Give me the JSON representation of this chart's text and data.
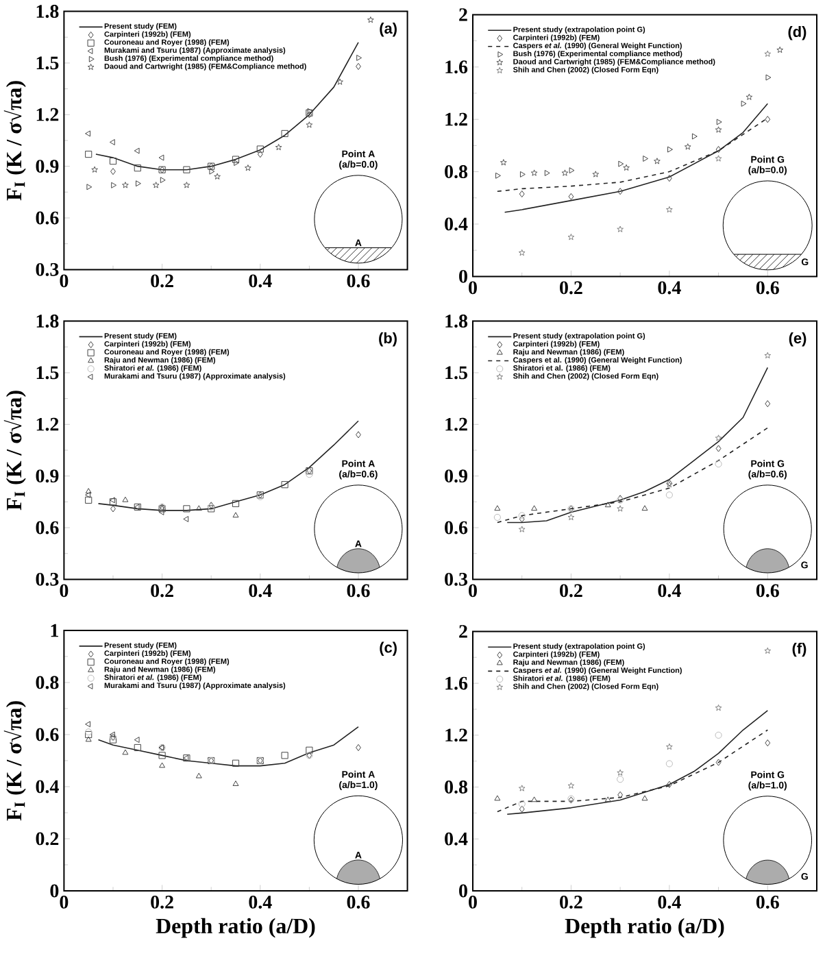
{
  "chart_data": [
    {
      "type": "scatter",
      "ylabel": "F$_{I}$ (K / σ√πa)",
      "xlim": [
        0,
        0.7
      ],
      "ylim": [
        0.3,
        1.8
      ],
      "xticks": [
        0,
        0.2,
        0.4,
        0.6
      ],
      "yticks": [
        0.3,
        0.6,
        0.9,
        1.2,
        1.5,
        1.8
      ],
      "legend": "top left",
      "annotations": [
        "(a)",
        "Point A",
        "(a/b=0.0)",
        "A"
      ],
      "series": [
        {
          "name": "Present study (FEM)",
          "type": "line",
          "marker": "none",
          "line_style": "solid",
          "color": "#222222",
          "x": [
            0.065,
            0.1,
            0.15,
            0.2,
            0.25,
            0.3,
            0.35,
            0.4,
            0.45,
            0.5,
            0.55,
            0.6
          ],
          "values": [
            0.97,
            0.95,
            0.9,
            0.88,
            0.88,
            0.9,
            0.94,
            0.995,
            1.08,
            1.2,
            1.36,
            1.62
          ]
        },
        {
          "name": "Carpinteri (1992b) (FEM)",
          "marker": "diamond",
          "color": "#444444",
          "x": [
            0.1,
            0.2,
            0.3,
            0.4,
            0.5,
            0.6
          ],
          "values": [
            0.87,
            0.88,
            0.9,
            0.97,
            1.2,
            1.48
          ]
        },
        {
          "name": "Couroneau and Royer (1998) (FEM)",
          "marker": "square",
          "color": "#444444",
          "x": [
            0.05,
            0.1,
            0.15,
            0.2,
            0.25,
            0.3,
            0.35,
            0.4,
            0.45,
            0.5
          ],
          "values": [
            0.97,
            0.93,
            0.89,
            0.88,
            0.88,
            0.9,
            0.94,
            1.0,
            1.09,
            1.21
          ]
        },
        {
          "name": "Murakami and Tsuru (1987) (Approximate analysis)",
          "marker": "triangle-left",
          "color": "#444444",
          "x": [
            0.05,
            0.1,
            0.15,
            0.2
          ],
          "values": [
            1.09,
            1.04,
            0.99,
            0.95
          ]
        },
        {
          "name": "Bush (1976) (Experimental compliance method)",
          "marker": "triangle-right",
          "color": "#444444",
          "x": [
            0.05,
            0.1,
            0.15,
            0.2,
            0.3,
            0.35,
            0.5,
            0.6
          ],
          "values": [
            0.78,
            0.79,
            0.8,
            0.82,
            0.87,
            0.92,
            1.22,
            1.53
          ]
        },
        {
          "name": "Daoud and Cartwright (1985) (FEM&Compliance method)",
          "marker": "star",
          "color": "#555555",
          "x": [
            0.0625,
            0.125,
            0.1875,
            0.25,
            0.3125,
            0.375,
            0.4375,
            0.5,
            0.5625,
            0.625
          ],
          "values": [
            0.88,
            0.79,
            0.79,
            0.79,
            0.84,
            0.89,
            1.01,
            1.14,
            1.39,
            1.75
          ]
        }
      ]
    },
    {
      "type": "scatter",
      "xlim": [
        0,
        0.7
      ],
      "ylim": [
        0,
        2
      ],
      "xticks": [
        0,
        0.2,
        0.4,
        0.6
      ],
      "yticks": [
        0,
        0.4,
        0.8,
        1.2,
        1.6,
        2
      ],
      "legend": "top left",
      "annotations": [
        "(d)",
        "Point G",
        "(a/b=0.0)",
        "G"
      ],
      "series": [
        {
          "name": "Present study (extrapolation point G)",
          "type": "line",
          "marker": "none",
          "line_style": "solid",
          "color": "#222222",
          "x": [
            0.065,
            0.1,
            0.2,
            0.3,
            0.4,
            0.5,
            0.55,
            0.6
          ],
          "values": [
            0.49,
            0.51,
            0.58,
            0.65,
            0.76,
            0.96,
            1.1,
            1.32
          ]
        },
        {
          "name": "Carpinteri (1992b) (FEM)",
          "marker": "diamond",
          "color": "#444444",
          "x": [
            0.1,
            0.2,
            0.3,
            0.4,
            0.5,
            0.6
          ],
          "values": [
            0.63,
            0.61,
            0.65,
            0.75,
            0.97,
            1.2
          ]
        },
        {
          "name": "Caspers *et al.* (1990) (General Weight Function)",
          "type": "line",
          "marker": "none",
          "line_style": "dashed",
          "color": "#222222",
          "x": [
            0.05,
            0.1,
            0.2,
            0.3,
            0.4,
            0.5,
            0.6
          ],
          "values": [
            0.65,
            0.67,
            0.69,
            0.72,
            0.8,
            0.96,
            1.21
          ]
        },
        {
          "name": "Bush (1976) (Experimental compliance method)",
          "marker": "triangle-right",
          "color": "#444444",
          "x": [
            0.05,
            0.1,
            0.15,
            0.2,
            0.3,
            0.35,
            0.4,
            0.45,
            0.5,
            0.55,
            0.6
          ],
          "values": [
            0.77,
            0.78,
            0.79,
            0.81,
            0.86,
            0.9,
            0.97,
            1.07,
            1.18,
            1.32,
            1.52
          ]
        },
        {
          "name": "Daoud and Cartwright (1985) (FEM&Compliance method)",
          "marker": "star",
          "color": "#555555",
          "x": [
            0.0625,
            0.125,
            0.1875,
            0.25,
            0.3125,
            0.375,
            0.4375,
            0.5,
            0.5625,
            0.625
          ],
          "values": [
            0.87,
            0.79,
            0.79,
            0.78,
            0.83,
            0.88,
            0.99,
            1.12,
            1.37,
            1.73
          ]
        },
        {
          "name": "Shih and Chen (2002) (Closed Form Eqn)",
          "marker": "star",
          "color": "#808080",
          "x": [
            0.1,
            0.2,
            0.3,
            0.4,
            0.5,
            0.6
          ],
          "values": [
            0.18,
            0.3,
            0.36,
            0.51,
            0.9,
            1.7
          ]
        }
      ]
    },
    {
      "type": "scatter",
      "ylabel": "F$_{I}$ (K / σ√πa)",
      "xlim": [
        0,
        0.7
      ],
      "ylim": [
        0.3,
        1.8
      ],
      "xticks": [
        0,
        0.2,
        0.4,
        0.6
      ],
      "yticks": [
        0.3,
        0.6,
        0.9,
        1.2,
        1.5,
        1.8
      ],
      "legend": "top left",
      "annotations": [
        "(b)",
        "Point A",
        "(a/b=0.6)",
        "A"
      ],
      "series": [
        {
          "name": "Present study (FEM)",
          "type": "line",
          "marker": "none",
          "line_style": "solid",
          "color": "#222222",
          "x": [
            0.07,
            0.1,
            0.15,
            0.2,
            0.25,
            0.3,
            0.35,
            0.4,
            0.45,
            0.5,
            0.55,
            0.6
          ],
          "values": [
            0.74,
            0.73,
            0.71,
            0.7,
            0.7,
            0.71,
            0.75,
            0.79,
            0.85,
            0.95,
            1.08,
            1.22
          ]
        },
        {
          "name": "Carpinteri (1992b) (FEM)",
          "marker": "diamond",
          "color": "#444444",
          "x": [
            0.1,
            0.2,
            0.3,
            0.4,
            0.5,
            0.6
          ],
          "values": [
            0.71,
            0.72,
            0.73,
            0.79,
            0.93,
            1.14
          ]
        },
        {
          "name": "Couroneau and Royer (1998) (FEM)",
          "marker": "square",
          "color": "#444444",
          "x": [
            0.05,
            0.1,
            0.15,
            0.2,
            0.25,
            0.3,
            0.35,
            0.4,
            0.45,
            0.5
          ],
          "values": [
            0.76,
            0.75,
            0.72,
            0.71,
            0.71,
            0.71,
            0.74,
            0.79,
            0.85,
            0.93
          ]
        },
        {
          "name": "Raju and Newman (1986) (FEM)",
          "marker": "triangle",
          "color": "#444444",
          "x": [
            0.05,
            0.125,
            0.2,
            0.275,
            0.35
          ],
          "values": [
            0.81,
            0.76,
            0.71,
            0.71,
            0.67
          ]
        },
        {
          "name": "Shiratori *et al.* (1986) (FEM)",
          "marker": "circle",
          "color": "#bbbbbb",
          "x": [
            0.2,
            0.3,
            0.4,
            0.5
          ],
          "values": [
            0.72,
            0.72,
            0.78,
            0.91
          ]
        },
        {
          "name": "Murakami and Tsuru (1987) (Approximate analysis)",
          "marker": "triangle-left",
          "color": "#444444",
          "x": [
            0.05,
            0.1,
            0.15,
            0.2,
            0.25
          ],
          "values": [
            0.79,
            0.76,
            0.72,
            0.69,
            0.65
          ]
        }
      ]
    },
    {
      "type": "scatter",
      "xlim": [
        0,
        0.7
      ],
      "ylim": [
        0.3,
        1.8
      ],
      "xticks": [
        0,
        0.2,
        0.4,
        0.6
      ],
      "yticks": [
        0.3,
        0.6,
        0.9,
        1.2,
        1.5,
        1.8
      ],
      "legend": "top left",
      "annotations": [
        "(e)",
        "Point G",
        "(a/b=0.6)",
        "G"
      ],
      "series": [
        {
          "name": "Present study (extrapolation point G)",
          "type": "line",
          "marker": "none",
          "line_style": "solid",
          "color": "#222222",
          "x": [
            0.07,
            0.1,
            0.15,
            0.2,
            0.3,
            0.35,
            0.4,
            0.45,
            0.5,
            0.55,
            0.6
          ],
          "values": [
            0.63,
            0.63,
            0.64,
            0.69,
            0.76,
            0.81,
            0.88,
            0.99,
            1.1,
            1.24,
            1.53
          ]
        },
        {
          "name": "Carpinteri (1992b) (FEM)",
          "marker": "diamond",
          "color": "#444444",
          "x": [
            0.1,
            0.2,
            0.3,
            0.4,
            0.5,
            0.6
          ],
          "values": [
            0.65,
            0.71,
            0.77,
            0.86,
            1.06,
            1.32
          ]
        },
        {
          "name": "Raju and Newman (1986) (FEM)",
          "marker": "triangle",
          "color": "#444444",
          "x": [
            0.05,
            0.125,
            0.275,
            0.35
          ],
          "values": [
            0.71,
            0.71,
            0.73,
            0.71
          ]
        },
        {
          "name": "Caspers et al. (1990) (General Weight Function)",
          "type": "line",
          "marker": "none",
          "line_style": "dashed",
          "color": "#222222",
          "x": [
            0.05,
            0.1,
            0.2,
            0.3,
            0.4,
            0.5,
            0.6
          ],
          "values": [
            0.63,
            0.67,
            0.71,
            0.75,
            0.83,
            0.99,
            1.18
          ]
        },
        {
          "name": "Shiratori et al. (1986) (FEM)",
          "marker": "circle",
          "color": "#bbbbbb",
          "x": [
            0.05,
            0.1,
            0.2,
            0.3,
            0.4,
            0.5
          ],
          "values": [
            0.66,
            0.67,
            0.71,
            0.76,
            0.79,
            0.97
          ]
        },
        {
          "name": "Shih and Chen (2002) (Closed Form Eqn)",
          "marker": "star",
          "color": "#808080",
          "x": [
            0.1,
            0.2,
            0.3,
            0.4,
            0.5,
            0.6
          ],
          "values": [
            0.59,
            0.66,
            0.71,
            0.85,
            1.12,
            1.6
          ]
        }
      ]
    },
    {
      "type": "scatter",
      "xlabel": "Depth ratio (a/D)",
      "ylabel": "F$_{I}$ (K / σ√πa)",
      "xlim": [
        0,
        0.7
      ],
      "ylim": [
        0,
        1
      ],
      "xticks": [
        0,
        0.2,
        0.4,
        0.6
      ],
      "yticks": [
        0,
        0.2,
        0.4,
        0.6,
        0.8,
        1
      ],
      "legend": "top left",
      "annotations": [
        "(c)",
        "Point A",
        "(a/b=1.0)",
        "A"
      ],
      "series": [
        {
          "name": "Present study (FEM)",
          "type": "line",
          "marker": "none",
          "line_style": "solid",
          "color": "#222222",
          "x": [
            0.07,
            0.1,
            0.15,
            0.2,
            0.25,
            0.3,
            0.35,
            0.4,
            0.45,
            0.5,
            0.55,
            0.6
          ],
          "values": [
            0.58,
            0.56,
            0.54,
            0.52,
            0.5,
            0.49,
            0.48,
            0.48,
            0.49,
            0.53,
            0.56,
            0.63
          ]
        },
        {
          "name": "Carpinteri (1992b) (FEM)",
          "marker": "diamond",
          "color": "#444444",
          "x": [
            0.1,
            0.2,
            0.3,
            0.4,
            0.5,
            0.6
          ],
          "values": [
            0.59,
            0.55,
            0.5,
            0.5,
            0.52,
            0.55
          ]
        },
        {
          "name": "Couroneau and Royer (1998) (FEM)",
          "marker": "square",
          "color": "#444444",
          "x": [
            0.05,
            0.1,
            0.15,
            0.2,
            0.25,
            0.3,
            0.35,
            0.4,
            0.45,
            0.5
          ],
          "values": [
            0.6,
            0.58,
            0.55,
            0.52,
            0.51,
            0.5,
            0.49,
            0.5,
            0.52,
            0.54
          ]
        },
        {
          "name": "Raju and Newman (1986) (FEM)",
          "marker": "triangle",
          "color": "#444444",
          "x": [
            0.05,
            0.125,
            0.2,
            0.275,
            0.35
          ],
          "values": [
            0.58,
            0.53,
            0.48,
            0.44,
            0.41
          ]
        },
        {
          "name": "Shiratori *et al.* (1986) (FEM)",
          "marker": "circle",
          "color": "#bbbbbb",
          "x": [
            0.05,
            0.1,
            0.2,
            0.3,
            0.4,
            0.5
          ],
          "values": [
            0.61,
            0.59,
            0.55,
            0.5,
            0.5,
            0.52
          ]
        },
        {
          "name": "Murakami and Tsuru (1987) (Approximate analysis)",
          "marker": "triangle-left",
          "color": "#444444",
          "x": [
            0.05,
            0.1,
            0.15,
            0.2,
            0.25
          ],
          "values": [
            0.64,
            0.6,
            0.58,
            0.55,
            0.51
          ]
        }
      ]
    },
    {
      "type": "scatter",
      "xlabel": "Depth ratio (a/D)",
      "xlim": [
        0,
        0.7
      ],
      "ylim": [
        0,
        2
      ],
      "xticks": [
        0,
        0.2,
        0.4,
        0.6
      ],
      "yticks": [
        0,
        0.4,
        0.8,
        1.2,
        1.6,
        2
      ],
      "legend": "top left",
      "annotations": [
        "(f)",
        "Point G",
        "(a/b=1.0)",
        "G"
      ],
      "series": [
        {
          "name": "Present study (extrapolation point G)",
          "type": "line",
          "marker": "none",
          "line_style": "solid",
          "color": "#222222",
          "x": [
            0.07,
            0.1,
            0.2,
            0.3,
            0.4,
            0.45,
            0.5,
            0.55,
            0.6
          ],
          "values": [
            0.59,
            0.6,
            0.64,
            0.7,
            0.82,
            0.92,
            1.06,
            1.24,
            1.39
          ]
        },
        {
          "name": "Carpinteri (1992b) (FEM)",
          "marker": "diamond",
          "color": "#444444",
          "x": [
            0.1,
            0.2,
            0.3,
            0.4,
            0.5,
            0.6
          ],
          "values": [
            0.63,
            0.7,
            0.74,
            0.82,
            0.99,
            1.14
          ]
        },
        {
          "name": "Raju and Newman (1986) (FEM)",
          "marker": "triangle",
          "color": "#444444",
          "x": [
            0.05,
            0.125,
            0.275,
            0.35
          ],
          "values": [
            0.71,
            0.7,
            0.7,
            0.71
          ]
        },
        {
          "name": "Caspers *et al.* (1990) (General Weight Function)",
          "type": "line",
          "marker": "none",
          "line_style": "dashed",
          "color": "#222222",
          "x": [
            0.05,
            0.1,
            0.2,
            0.3,
            0.4,
            0.5,
            0.6
          ],
          "values": [
            0.61,
            0.69,
            0.69,
            0.72,
            0.81,
            0.99,
            1.24
          ]
        },
        {
          "name": "Shiratori *et al.* (1986) (FEM)",
          "marker": "circle",
          "color": "#bbbbbb",
          "x": [
            0.1,
            0.2,
            0.3,
            0.4,
            0.5
          ],
          "values": [
            0.67,
            0.71,
            0.86,
            0.98,
            1.2
          ]
        },
        {
          "name": "Shih and Chen (2002) (Closed Form Eqn)",
          "marker": "star",
          "color": "#808080",
          "x": [
            0.1,
            0.2,
            0.3,
            0.4,
            0.5,
            0.6
          ],
          "values": [
            0.79,
            0.81,
            0.91,
            1.11,
            1.41,
            1.85
          ]
        }
      ]
    }
  ]
}
